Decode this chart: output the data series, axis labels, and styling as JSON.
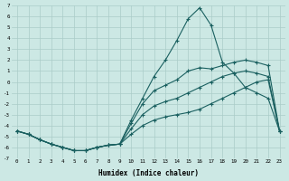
{
  "xlabel": "Humidex (Indice chaleur)",
  "bg_color": "#cce8e4",
  "grid_color": "#aaccc8",
  "line_color": "#1a6060",
  "xlim": [
    -0.5,
    23.5
  ],
  "ylim": [
    -7,
    7
  ],
  "xticks": [
    0,
    1,
    2,
    3,
    4,
    5,
    6,
    7,
    8,
    9,
    10,
    11,
    12,
    13,
    14,
    15,
    16,
    17,
    18,
    19,
    20,
    21,
    22,
    23
  ],
  "yticks": [
    -7,
    -6,
    -5,
    -4,
    -3,
    -2,
    -1,
    0,
    1,
    2,
    3,
    4,
    5,
    6,
    7
  ],
  "series": {
    "upper": [
      [
        0,
        -4.5
      ],
      [
        1,
        -4.8
      ],
      [
        2,
        -5.3
      ],
      [
        3,
        -5.7
      ],
      [
        4,
        -6.0
      ],
      [
        5,
        -6.3
      ],
      [
        6,
        -6.3
      ],
      [
        7,
        -6.0
      ],
      [
        8,
        -5.8
      ],
      [
        9,
        -5.7
      ],
      [
        10,
        -3.5
      ],
      [
        11,
        -1.5
      ],
      [
        12,
        0.5
      ],
      [
        13,
        2.0
      ],
      [
        14,
        3.8
      ],
      [
        15,
        5.8
      ],
      [
        16,
        6.8
      ],
      [
        17,
        5.2
      ],
      [
        18,
        1.8
      ],
      [
        19,
        0.8
      ],
      [
        20,
        -0.5
      ],
      [
        21,
        -1.0
      ],
      [
        22,
        -1.5
      ],
      [
        23,
        -4.5
      ]
    ],
    "middle1": [
      [
        0,
        -4.5
      ],
      [
        1,
        -4.8
      ],
      [
        2,
        -5.3
      ],
      [
        3,
        -5.7
      ],
      [
        4,
        -6.0
      ],
      [
        5,
        -6.3
      ],
      [
        6,
        -6.3
      ],
      [
        7,
        -6.0
      ],
      [
        8,
        -5.8
      ],
      [
        9,
        -5.7
      ],
      [
        10,
        -3.8
      ],
      [
        11,
        -2.0
      ],
      [
        12,
        -0.8
      ],
      [
        13,
        -0.3
      ],
      [
        14,
        0.2
      ],
      [
        15,
        1.0
      ],
      [
        16,
        1.3
      ],
      [
        17,
        1.2
      ],
      [
        18,
        1.5
      ],
      [
        19,
        1.8
      ],
      [
        20,
        2.0
      ],
      [
        21,
        1.8
      ],
      [
        22,
        1.5
      ],
      [
        23,
        -4.5
      ]
    ],
    "middle2": [
      [
        0,
        -4.5
      ],
      [
        1,
        -4.8
      ],
      [
        2,
        -5.3
      ],
      [
        3,
        -5.7
      ],
      [
        4,
        -6.0
      ],
      [
        5,
        -6.3
      ],
      [
        6,
        -6.3
      ],
      [
        7,
        -6.0
      ],
      [
        8,
        -5.8
      ],
      [
        9,
        -5.7
      ],
      [
        10,
        -4.3
      ],
      [
        11,
        -3.0
      ],
      [
        12,
        -2.2
      ],
      [
        13,
        -1.8
      ],
      [
        14,
        -1.5
      ],
      [
        15,
        -1.0
      ],
      [
        16,
        -0.5
      ],
      [
        17,
        0.0
      ],
      [
        18,
        0.5
      ],
      [
        19,
        0.8
      ],
      [
        20,
        1.0
      ],
      [
        21,
        0.8
      ],
      [
        22,
        0.5
      ],
      [
        23,
        -4.5
      ]
    ],
    "lower": [
      [
        0,
        -4.5
      ],
      [
        1,
        -4.8
      ],
      [
        2,
        -5.3
      ],
      [
        3,
        -5.7
      ],
      [
        4,
        -6.0
      ],
      [
        5,
        -6.3
      ],
      [
        6,
        -6.3
      ],
      [
        7,
        -6.0
      ],
      [
        8,
        -5.8
      ],
      [
        9,
        -5.7
      ],
      [
        10,
        -4.8
      ],
      [
        11,
        -4.0
      ],
      [
        12,
        -3.5
      ],
      [
        13,
        -3.2
      ],
      [
        14,
        -3.0
      ],
      [
        15,
        -2.8
      ],
      [
        16,
        -2.5
      ],
      [
        17,
        -2.0
      ],
      [
        18,
        -1.5
      ],
      [
        19,
        -1.0
      ],
      [
        20,
        -0.5
      ],
      [
        21,
        0.0
      ],
      [
        22,
        0.2
      ],
      [
        23,
        -4.5
      ]
    ]
  }
}
